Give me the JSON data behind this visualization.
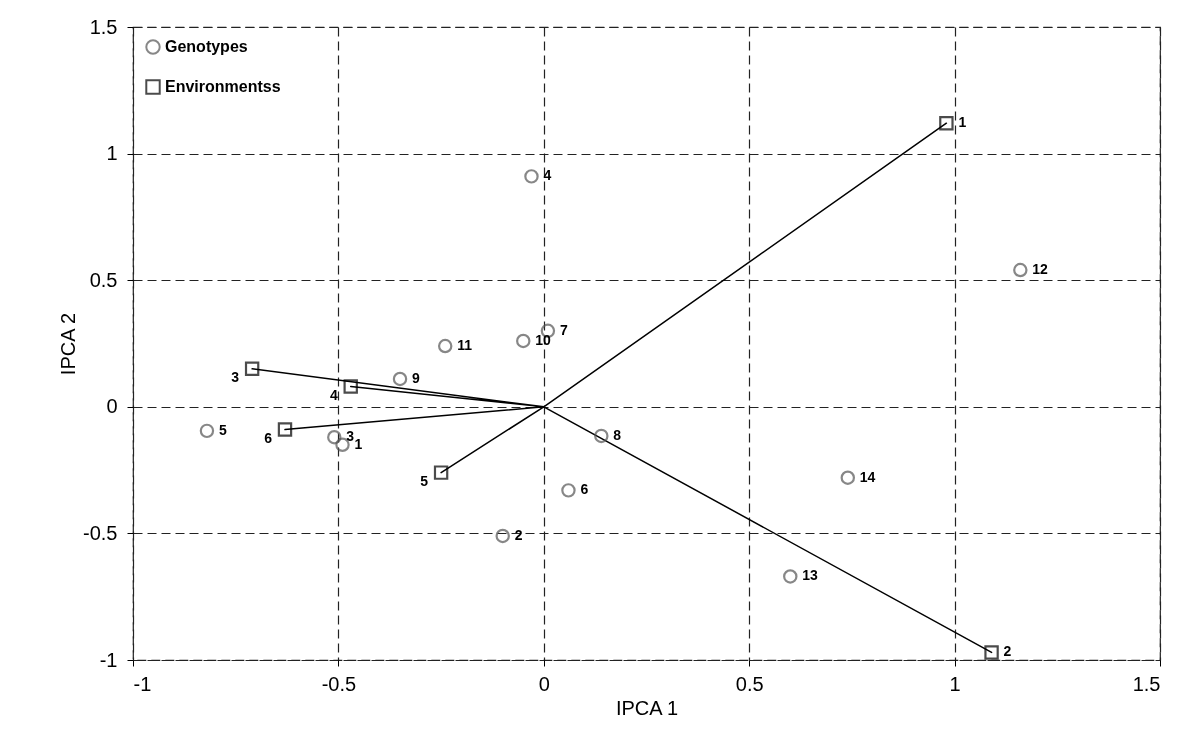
{
  "chart_data": {
    "type": "scatter",
    "xlabel": "IPCA 1",
    "ylabel": "IPCA 2",
    "xlim": [
      -1,
      1.5
    ],
    "ylim": [
      -1,
      1.5
    ],
    "xticks": [
      -1,
      -0.5,
      0,
      0.5,
      1,
      1.5
    ],
    "yticks": [
      -1,
      -0.5,
      0,
      0.5,
      1,
      1.5
    ],
    "grid": true,
    "legend": "top left",
    "series": [
      {
        "name": "Genotypes",
        "marker": "circle",
        "color": "#555555",
        "x": [
          -0.49,
          -0.1,
          -0.51,
          -0.03,
          -0.82,
          0.06,
          0.01,
          0.14,
          -0.35,
          -0.05,
          -0.24,
          1.16,
          0.6,
          0.74
        ],
        "values": [
          -0.15,
          -0.51,
          -0.12,
          0.91,
          -0.095,
          -0.33,
          0.3,
          -0.115,
          0.11,
          0.26,
          0.24,
          0.54,
          -0.67,
          -0.28
        ]
      },
      {
        "name": "Environmentss",
        "marker": "square",
        "color": "#000000",
        "x": [
          0.98,
          1.09,
          -0.71,
          -0.47,
          -0.25,
          -0.63
        ],
        "values": [
          1.12,
          -0.97,
          0.15,
          0.08,
          -0.26,
          -0.09
        ]
      },
      {
        "type": "line",
        "color": "#000000",
        "x": [
          0,
          0.98,
          0,
          1.09,
          0,
          -0.71,
          0,
          -0.47,
          0,
          -0.25,
          0,
          -0.63
        ],
        "values": [
          0,
          1.12,
          0,
          -0.97,
          0,
          0.15,
          0,
          0.08,
          0,
          -0.26,
          0,
          -0.09
        ]
      }
    ],
    "annotations": [
      {
        "text": "1",
        "x": -0.49,
        "y": -0.15
      },
      {
        "text": "2",
        "x": -0.1,
        "y": -0.51
      },
      {
        "text": "3",
        "x": -0.51,
        "y": -0.12
      },
      {
        "text": "4",
        "x": -0.03,
        "y": 0.91
      },
      {
        "text": "5",
        "x": -0.82,
        "y": -0.095
      },
      {
        "text": "6",
        "x": 0.06,
        "y": -0.33
      },
      {
        "text": "7",
        "x": 0.01,
        "y": 0.3
      },
      {
        "text": "8",
        "x": 0.14,
        "y": -0.115
      },
      {
        "text": "9",
        "x": -0.35,
        "y": 0.11
      },
      {
        "text": "10",
        "x": -0.05,
        "y": 0.26
      },
      {
        "text": "11",
        "x": -0.24,
        "y": 0.24
      },
      {
        "text": "12",
        "x": 1.16,
        "y": 0.54
      },
      {
        "text": "13",
        "x": 0.6,
        "y": -0.67
      },
      {
        "text": "14",
        "x": 0.74,
        "y": -0.28
      },
      {
        "text": "1",
        "x": 0.98,
        "y": 1.12
      },
      {
        "text": "2",
        "x": 1.09,
        "y": -0.97
      },
      {
        "text": "3",
        "x": -0.71,
        "y": 0.15
      },
      {
        "text": "4",
        "x": -0.47,
        "y": 0.08
      },
      {
        "text": "5",
        "x": -0.25,
        "y": -0.26
      },
      {
        "text": "6",
        "x": -0.63,
        "y": -0.09
      }
    ]
  }
}
